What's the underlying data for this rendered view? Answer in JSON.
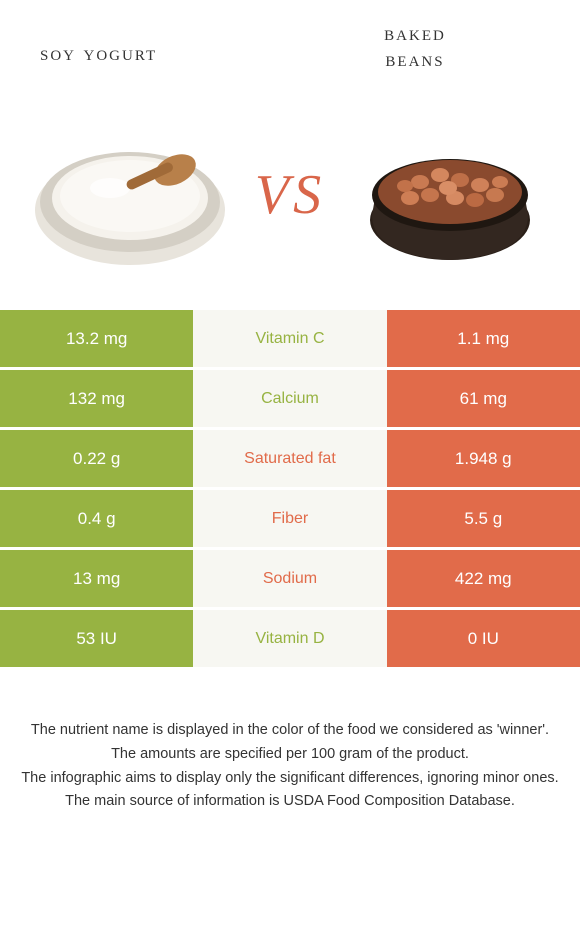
{
  "titles": {
    "left": "soy yogurt",
    "right_line1": "baked",
    "right_line2": "beans"
  },
  "vs": "VS",
  "colors": {
    "left_bg": "#97b342",
    "right_bg": "#e16b4a",
    "mid_bg": "#f7f7f2",
    "left_text": "#97b342",
    "right_text": "#e16b4a",
    "vs_text": "#d9664a"
  },
  "rows": [
    {
      "left": "13.2 mg",
      "mid": "Vitamin C",
      "right": "1.1 mg",
      "winner": "left"
    },
    {
      "left": "132 mg",
      "mid": "Calcium",
      "right": "61 mg",
      "winner": "left"
    },
    {
      "left": "0.22 g",
      "mid": "Saturated fat",
      "right": "1.948 g",
      "winner": "right"
    },
    {
      "left": "0.4 g",
      "mid": "Fiber",
      "right": "5.5 g",
      "winner": "right"
    },
    {
      "left": "13 mg",
      "mid": "Sodium",
      "right": "422 mg",
      "winner": "right"
    },
    {
      "left": "53 IU",
      "mid": "Vitamin D",
      "right": "0 IU",
      "winner": "left"
    }
  ],
  "footnotes": [
    "The nutrient name is displayed in the color of the food we considered as 'winner'.",
    "The amounts are specified per 100 gram of the product.",
    "The infographic aims to display only the significant differences, ignoring minor ones.",
    "The main source of information is USDA Food Composition Database."
  ]
}
